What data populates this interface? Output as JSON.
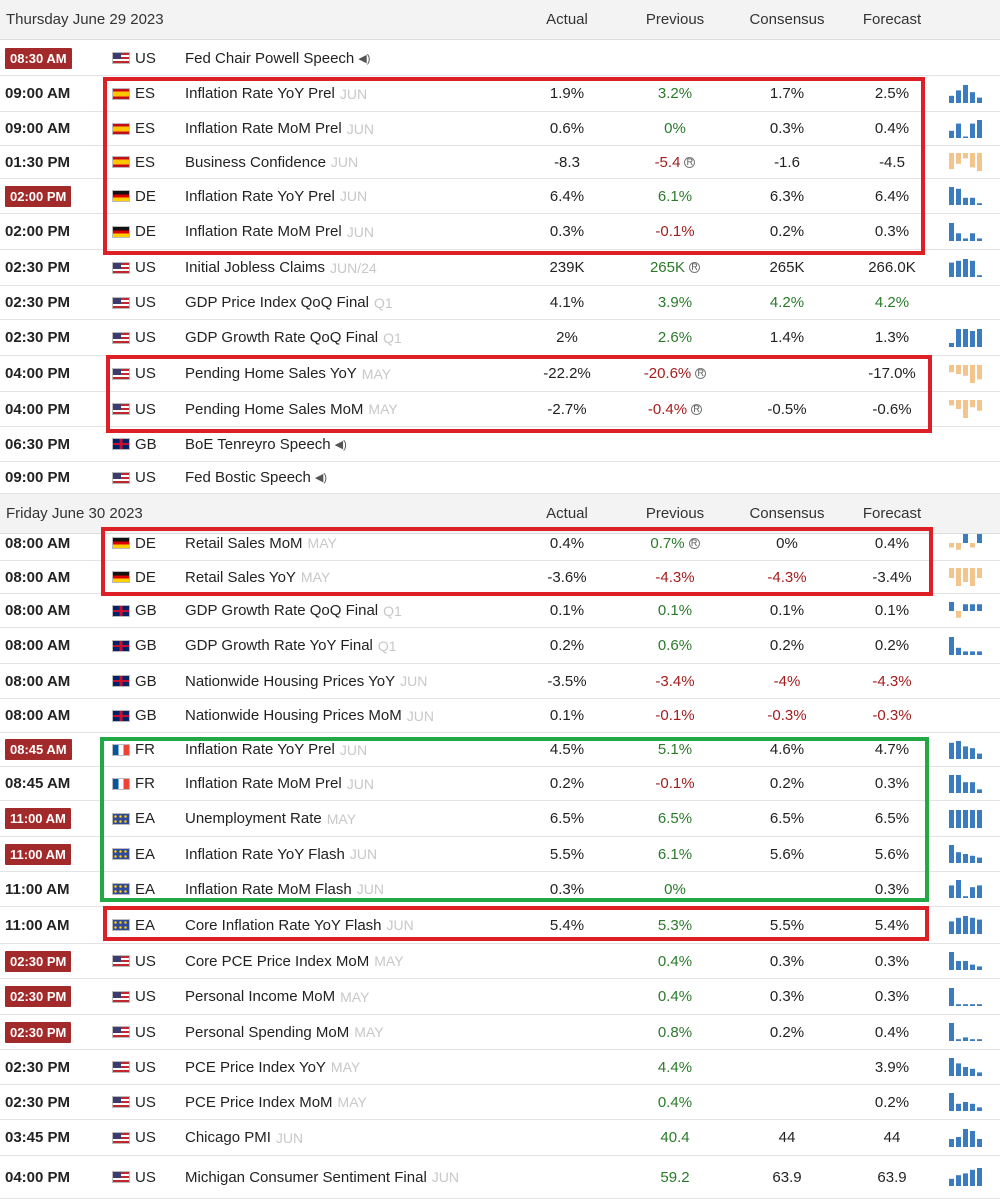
{
  "columns": {
    "actual": "Actual",
    "previous": "Previous",
    "consensus": "Consensus",
    "forecast": "Forecast"
  },
  "colors": {
    "positive": "#2a7a2a",
    "negative": "#a31d1d",
    "highlight_red": "#dd1f26",
    "highlight_green": "#22a845",
    "time_badge": "#a32a2a",
    "spark_blue": "#3b7bbf",
    "spark_orange": "#f3c48c"
  },
  "days": [
    {
      "label": "Thursday June 29 2023",
      "events": [
        {
          "time": "08:30 AM",
          "boxed": true,
          "country": "US",
          "flag": "us",
          "event": "Fed Chair Powell Speech",
          "ref": "",
          "speech": true,
          "actual": "",
          "previous": "",
          "consensus": "",
          "forecast": "",
          "spark": []
        },
        {
          "time": "09:00 AM",
          "boxed": false,
          "country": "ES",
          "flag": "es",
          "event": "Inflation Rate YoY Prel",
          "ref": "JUN",
          "actual": "1.9%",
          "previous": "3.2%",
          "prev_color": "pos",
          "consensus": "1.7%",
          "forecast": "2.5%",
          "spark_color": "blue",
          "spark": [
            4,
            7,
            10,
            6,
            3,
            1
          ]
        },
        {
          "time": "09:00 AM",
          "boxed": false,
          "country": "ES",
          "flag": "es",
          "event": "Inflation Rate MoM Prel",
          "ref": "JUN",
          "actual": "0.6%",
          "previous": "0%",
          "prev_color": "pos",
          "consensus": "0.3%",
          "forecast": "0.4%",
          "spark_color": "blue",
          "spark": [
            4,
            8,
            0,
            8,
            10
          ]
        },
        {
          "time": "01:30 PM",
          "boxed": false,
          "country": "ES",
          "flag": "es",
          "event": "Business Confidence",
          "ref": "JUN",
          "actual": "-8.3",
          "previous": "-5.4",
          "prev_color": "neg",
          "revised": true,
          "consensus": "-1.6",
          "forecast": "-4.5",
          "spark_color": "orange",
          "spark": [
            -9,
            -6,
            -3,
            -8,
            -10
          ]
        },
        {
          "time": "02:00 PM",
          "boxed": true,
          "country": "DE",
          "flag": "de",
          "event": "Inflation Rate YoY Prel",
          "ref": "JUN",
          "actual": "6.4%",
          "previous": "6.1%",
          "prev_color": "pos",
          "consensus": "6.3%",
          "forecast": "6.4%",
          "spark_color": "blue",
          "spark": [
            10,
            9,
            4,
            4,
            1
          ]
        },
        {
          "time": "02:00 PM",
          "boxed": false,
          "country": "DE",
          "flag": "de",
          "event": "Inflation Rate MoM Prel",
          "ref": "JUN",
          "actual": "0.3%",
          "previous": "-0.1%",
          "prev_color": "neg",
          "consensus": "0.2%",
          "forecast": "0.3%",
          "spark_color": "blue",
          "spark": [
            7,
            3,
            1,
            3,
            1
          ]
        },
        {
          "time": "02:30 PM",
          "boxed": false,
          "country": "US",
          "flag": "us",
          "event": "Initial Jobless Claims",
          "ref": "JUN/24",
          "actual": "239K",
          "previous": "265K",
          "prev_color": "pos",
          "revised": true,
          "consensus": "265K",
          "forecast": "266.0K",
          "spark_color": "blue",
          "spark": [
            8,
            9,
            10,
            9,
            1
          ]
        },
        {
          "time": "02:30 PM",
          "boxed": false,
          "country": "US",
          "flag": "us",
          "event": "GDP Price Index QoQ Final",
          "ref": "Q1",
          "actual": "4.1%",
          "previous": "3.9%",
          "prev_color": "pos",
          "consensus": "4.2%",
          "cons_color": "pos",
          "forecast": "4.2%",
          "fore_color": "pos",
          "spark": []
        },
        {
          "time": "02:30 PM",
          "boxed": false,
          "country": "US",
          "flag": "us",
          "event": "GDP Growth Rate QoQ Final",
          "ref": "Q1",
          "actual": "2%",
          "previous": "2.6%",
          "prev_color": "pos",
          "consensus": "1.4%",
          "forecast": "1.3%",
          "spark_color": "blue",
          "spark": [
            2,
            9,
            9,
            8,
            9
          ]
        },
        {
          "time": "04:00 PM",
          "boxed": false,
          "country": "US",
          "flag": "us",
          "event": "Pending Home Sales YoY",
          "ref": "MAY",
          "actual": "-22.2%",
          "previous": "-20.6%",
          "prev_color": "neg",
          "revised": true,
          "consensus": "",
          "forecast": "-17.0%",
          "spark_color": "orange",
          "spark": [
            -4,
            -5,
            -6,
            -10,
            -8
          ]
        },
        {
          "time": "04:00 PM",
          "boxed": false,
          "country": "US",
          "flag": "us",
          "event": "Pending Home Sales MoM",
          "ref": "MAY",
          "actual": "-2.7%",
          "previous": "-0.4%",
          "prev_color": "neg",
          "revised": true,
          "consensus": "-0.5%",
          "forecast": "-0.6%",
          "spark_color": "orange",
          "spark": [
            -3,
            -5,
            -10,
            -4,
            -6
          ]
        },
        {
          "time": "06:30 PM",
          "boxed": false,
          "country": "GB",
          "flag": "gb",
          "event": "BoE Tenreyro Speech",
          "ref": "",
          "speech": true,
          "actual": "",
          "previous": "",
          "consensus": "",
          "forecast": "",
          "spark": []
        },
        {
          "time": "09:00 PM",
          "boxed": false,
          "country": "US",
          "flag": "us",
          "event": "Fed Bostic Speech",
          "ref": "",
          "speech": true,
          "actual": "",
          "previous": "",
          "consensus": "",
          "forecast": "",
          "spark": []
        }
      ]
    },
    {
      "label": "Friday June 30 2023",
      "events": [
        {
          "time": "08:00 AM",
          "boxed": false,
          "country": "DE",
          "flag": "de",
          "event": "Retail Sales MoM",
          "ref": "MAY",
          "actual": "0.4%",
          "previous": "0.7%",
          "prev_color": "pos",
          "revised": true,
          "consensus": "0%",
          "forecast": "0.4%",
          "spark_color": "mixed",
          "spark": [
            -2,
            -3,
            4,
            -2,
            4
          ]
        },
        {
          "time": "08:00 AM",
          "boxed": false,
          "country": "DE",
          "flag": "de",
          "event": "Retail Sales YoY",
          "ref": "MAY",
          "actual": "-3.6%",
          "previous": "-4.3%",
          "prev_color": "neg",
          "consensus": "-4.3%",
          "cons_color": "neg",
          "forecast": "-3.4%",
          "spark_color": "orange",
          "spark": [
            -5,
            -9,
            -7,
            -9,
            -5
          ]
        },
        {
          "time": "08:00 AM",
          "boxed": false,
          "country": "GB",
          "flag": "gb",
          "event": "GDP Growth Rate QoQ Final",
          "ref": "Q1",
          "actual": "0.1%",
          "previous": "0.1%",
          "prev_color": "pos",
          "consensus": "0.1%",
          "forecast": "0.1%",
          "spark_color": "mixed",
          "spark": [
            4,
            -3,
            3,
            3,
            3
          ]
        },
        {
          "time": "08:00 AM",
          "boxed": false,
          "country": "GB",
          "flag": "gb",
          "event": "GDP Growth Rate YoY Final",
          "ref": "Q1",
          "actual": "0.2%",
          "previous": "0.6%",
          "prev_color": "pos",
          "consensus": "0.2%",
          "forecast": "0.2%",
          "spark_color": "blue",
          "spark": [
            10,
            4,
            2,
            2,
            2
          ]
        },
        {
          "time": "08:00 AM",
          "boxed": false,
          "country": "GB",
          "flag": "gb",
          "event": "Nationwide Housing Prices YoY",
          "ref": "JUN",
          "actual": "-3.5%",
          "previous": "-3.4%",
          "prev_color": "neg",
          "consensus": "-4%",
          "cons_color": "neg",
          "forecast": "-4.3%",
          "fore_color": "neg",
          "spark": []
        },
        {
          "time": "08:00 AM",
          "boxed": false,
          "country": "GB",
          "flag": "gb",
          "event": "Nationwide Housing Prices MoM",
          "ref": "JUN",
          "actual": "0.1%",
          "previous": "-0.1%",
          "prev_color": "neg",
          "consensus": "-0.3%",
          "cons_color": "neg",
          "forecast": "-0.3%",
          "fore_color": "neg",
          "spark": []
        },
        {
          "time": "08:45 AM",
          "boxed": true,
          "country": "FR",
          "flag": "fr",
          "event": "Inflation Rate YoY Prel",
          "ref": "JUN",
          "actual": "4.5%",
          "previous": "5.1%",
          "prev_color": "pos",
          "consensus": "4.6%",
          "forecast": "4.7%",
          "spark_color": "blue",
          "spark": [
            9,
            10,
            7,
            6,
            3
          ]
        },
        {
          "time": "08:45 AM",
          "boxed": false,
          "country": "FR",
          "flag": "fr",
          "event": "Inflation Rate MoM Prel",
          "ref": "JUN",
          "actual": "0.2%",
          "previous": "-0.1%",
          "prev_color": "neg",
          "consensus": "0.2%",
          "forecast": "0.3%",
          "spark_color": "blue",
          "spark": [
            10,
            10,
            6,
            6,
            2
          ]
        },
        {
          "time": "11:00 AM",
          "boxed": true,
          "country": "EA",
          "flag": "eu",
          "event": "Unemployment Rate",
          "ref": "MAY",
          "actual": "6.5%",
          "previous": "6.5%",
          "prev_color": "pos",
          "consensus": "6.5%",
          "forecast": "6.5%",
          "spark_color": "blue",
          "spark": [
            10,
            10,
            10,
            10,
            10
          ]
        },
        {
          "time": "11:00 AM",
          "boxed": true,
          "country": "EA",
          "flag": "eu",
          "event": "Inflation Rate YoY Flash",
          "ref": "JUN",
          "actual": "5.5%",
          "previous": "6.1%",
          "prev_color": "pos",
          "consensus": "5.6%",
          "forecast": "5.6%",
          "spark_color": "blue",
          "spark": [
            10,
            6,
            5,
            4,
            3
          ]
        },
        {
          "time": "11:00 AM",
          "boxed": false,
          "country": "EA",
          "flag": "eu",
          "event": "Inflation Rate MoM Flash",
          "ref": "JUN",
          "actual": "0.3%",
          "previous": "0%",
          "prev_color": "pos",
          "consensus": "",
          "forecast": "0.3%",
          "spark_color": "blue",
          "spark": [
            7,
            10,
            1,
            6,
            7
          ]
        },
        {
          "time": "11:00 AM",
          "boxed": false,
          "country": "EA",
          "flag": "eu",
          "event": "Core Inflation Rate YoY Flash",
          "ref": "JUN",
          "actual": "5.4%",
          "previous": "5.3%",
          "prev_color": "pos",
          "consensus": "5.5%",
          "forecast": "5.4%",
          "spark_color": "blue",
          "spark": [
            7,
            9,
            10,
            9,
            8
          ]
        },
        {
          "time": "02:30 PM",
          "boxed": true,
          "country": "US",
          "flag": "us",
          "event": "Core PCE Price Index MoM",
          "ref": "MAY",
          "actual": "",
          "previous": "0.4%",
          "prev_color": "pos",
          "consensus": "0.3%",
          "forecast": "0.3%",
          "spark_color": "blue",
          "spark": [
            10,
            5,
            5,
            3,
            2
          ]
        },
        {
          "time": "02:30 PM",
          "boxed": true,
          "country": "US",
          "flag": "us",
          "event": "Personal Income MoM",
          "ref": "MAY",
          "actual": "",
          "previous": "0.4%",
          "prev_color": "pos",
          "consensus": "0.3%",
          "forecast": "0.3%",
          "spark_color": "blue",
          "spark": [
            10,
            1,
            1,
            1,
            1
          ]
        },
        {
          "time": "02:30 PM",
          "boxed": true,
          "country": "US",
          "flag": "us",
          "event": "Personal Spending MoM",
          "ref": "MAY",
          "actual": "",
          "previous": "0.8%",
          "prev_color": "pos",
          "consensus": "0.2%",
          "forecast": "0.4%",
          "spark_color": "blue",
          "spark": [
            10,
            1,
            2,
            1,
            1
          ]
        },
        {
          "time": "02:30 PM",
          "boxed": false,
          "country": "US",
          "flag": "us",
          "event": "PCE Price Index YoY",
          "ref": "MAY",
          "actual": "",
          "previous": "4.4%",
          "prev_color": "pos",
          "consensus": "",
          "forecast": "3.9%",
          "spark_color": "blue",
          "spark": [
            10,
            7,
            5,
            4,
            2
          ]
        },
        {
          "time": "02:30 PM",
          "boxed": false,
          "country": "US",
          "flag": "us",
          "event": "PCE Price Index MoM",
          "ref": "MAY",
          "actual": "",
          "previous": "0.4%",
          "prev_color": "pos",
          "consensus": "",
          "forecast": "0.2%",
          "spark_color": "blue",
          "spark": [
            10,
            4,
            5,
            4,
            2
          ]
        },
        {
          "time": "03:45 PM",
          "boxed": false,
          "country": "US",
          "flag": "us",
          "event": "Chicago PMI",
          "ref": "JUN",
          "actual": "",
          "previous": "40.4",
          "prev_color": "pos",
          "consensus": "44",
          "forecast": "44",
          "spark_color": "blue",
          "spark": [
            4,
            5,
            9,
            8,
            4
          ]
        },
        {
          "time": "04:00 PM",
          "boxed": false,
          "country": "US",
          "flag": "us",
          "event": "Michigan Consumer Sentiment Final",
          "ref": "JUN",
          "actual": "",
          "previous": "59.2",
          "prev_color": "pos",
          "consensus": "63.9",
          "forecast": "63.9",
          "spark_color": "blue",
          "spark": [
            4,
            6,
            7,
            9,
            10
          ]
        }
      ]
    }
  ]
}
